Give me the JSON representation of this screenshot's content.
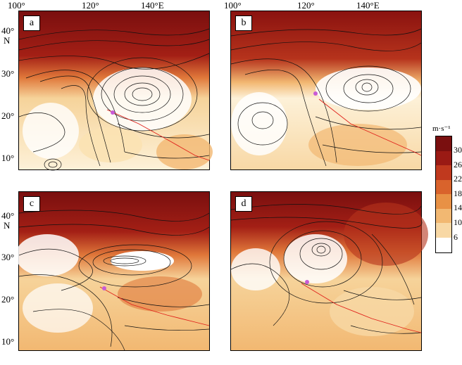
{
  "lon_labels": [
    "100°",
    "120°",
    "140°E"
  ],
  "lat_labels": [
    "40°",
    "30°",
    "20°",
    "10°"
  ],
  "lat_hemisphere": "N",
  "colorbar": {
    "unit": "m·s⁻¹",
    "ticks": [
      "30",
      "26",
      "22",
      "18",
      "14",
      "10",
      "6"
    ],
    "colors": [
      "#7a0f0f",
      "#9a1a14",
      "#c0391e",
      "#d9632c",
      "#e89145",
      "#f2b872",
      "#f8d8a5",
      "#fdf1d8",
      "#ffffff"
    ]
  },
  "panels": [
    {
      "id": "a",
      "label": "a"
    },
    {
      "id": "b",
      "label": "b"
    },
    {
      "id": "c",
      "label": "c"
    },
    {
      "id": "d",
      "label": "d"
    }
  ]
}
